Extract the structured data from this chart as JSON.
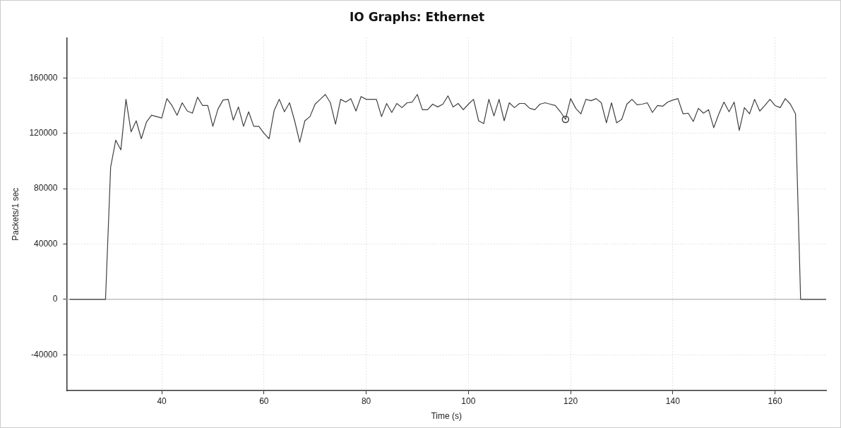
{
  "chart_data": {
    "type": "line",
    "title": "IO Graphs: Ethernet",
    "xlabel": "Time (s)",
    "ylabel": "Packets/1 sec",
    "x": [
      22,
      23,
      24,
      25,
      26,
      27,
      28,
      29,
      30,
      31,
      32,
      33,
      34,
      35,
      36,
      37,
      38,
      39,
      40,
      41,
      42,
      43,
      44,
      45,
      46,
      47,
      48,
      49,
      50,
      51,
      52,
      53,
      54,
      55,
      56,
      57,
      58,
      59,
      60,
      61,
      62,
      63,
      64,
      65,
      66,
      67,
      68,
      69,
      70,
      71,
      72,
      73,
      74,
      75,
      76,
      77,
      78,
      79,
      80,
      81,
      82,
      83,
      84,
      85,
      86,
      87,
      88,
      89,
      90,
      91,
      92,
      93,
      94,
      95,
      96,
      97,
      98,
      99,
      100,
      101,
      102,
      103,
      104,
      105,
      106,
      107,
      108,
      109,
      110,
      111,
      112,
      113,
      114,
      115,
      116,
      117,
      118,
      119,
      120,
      121,
      122,
      123,
      124,
      125,
      126,
      127,
      128,
      129,
      130,
      131,
      132,
      133,
      134,
      135,
      136,
      137,
      138,
      139,
      140,
      141,
      142,
      143,
      144,
      145,
      146,
      147,
      148,
      149,
      150,
      151,
      152,
      153,
      154,
      155,
      156,
      157,
      158,
      159,
      160,
      161,
      162,
      163,
      164,
      165,
      166,
      167,
      168,
      169,
      170
    ],
    "series": [
      {
        "color": "#404040",
        "marker": "none",
        "values": [
          0,
          0,
          0,
          0,
          0,
          0,
          0,
          0,
          95500,
          115000,
          108000,
          144500,
          121000,
          129000,
          116000,
          128000,
          133000,
          132000,
          131000,
          145000,
          140000,
          133000,
          142000,
          136000,
          134500,
          146000,
          140000,
          140000,
          125000,
          137500,
          144000,
          144500,
          129500,
          139000,
          125000,
          135500,
          125000,
          125000,
          120000,
          116000,
          136500,
          144500,
          135500,
          142000,
          129000,
          113500,
          129000,
          132000,
          141000,
          144500,
          148000,
          142000,
          126500,
          144500,
          142500,
          145000,
          136000,
          146500,
          144500,
          144500,
          144500,
          132000,
          141500,
          135000,
          141500,
          138500,
          142000,
          142500,
          148000,
          137000,
          137000,
          141000,
          139000,
          141000,
          147000,
          139000,
          141500,
          137000,
          141000,
          144500,
          129000,
          127000,
          144500,
          132500,
          144500,
          129000,
          142000,
          138500,
          141500,
          141500,
          138000,
          137000,
          141000,
          142000,
          141000,
          140000,
          135500,
          130000,
          145000,
          138000,
          134000,
          144500,
          143500,
          145000,
          142000,
          127500,
          142000,
          127500,
          130000,
          141000,
          144500,
          140500,
          141000,
          142000,
          135000,
          140000,
          139500,
          142500,
          144000,
          145000,
          134000,
          134500,
          128500,
          138000,
          134500,
          137000,
          124000,
          134000,
          142500,
          135500,
          142500,
          122000,
          138500,
          134000,
          144500,
          136000,
          140000,
          144500,
          140000,
          138500,
          145000,
          141000,
          134000,
          0,
          0,
          0,
          0,
          0,
          0
        ]
      },
      {
        "type": "scatter",
        "color": "#404040",
        "marker": "circle",
        "x": [
          119
        ],
        "values": [
          130000
        ]
      }
    ],
    "xlim": [
      21.4,
      170
    ],
    "xticks": [
      40,
      60,
      80,
      100,
      120,
      140,
      160
    ],
    "ylim": [
      -66000,
      189000
    ],
    "yticks": [
      -40000,
      0,
      40000,
      80000,
      120000,
      160000
    ],
    "ref_lines": [
      {
        "axis": "y",
        "value": 0,
        "color": "#c0c0c0"
      }
    ],
    "grid": true,
    "legend": false
  }
}
